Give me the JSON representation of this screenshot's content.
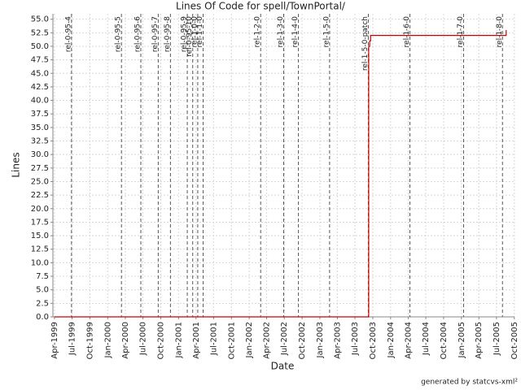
{
  "chart_data": {
    "type": "line",
    "title": "Lines Of Code for spell/TownPortal/",
    "x_label": "Date",
    "y_label": "Lines",
    "credit": "generated by statcvs-xml²",
    "color": "#cc0000",
    "grid": true,
    "x": [
      "1999-04-01",
      "2003-09-10",
      "2003-09-10",
      "2003-09-15",
      "2003-09-15",
      "2003-09-20",
      "2003-09-20",
      "2005-08-20",
      "2005-08-20"
    ],
    "values": [
      0,
      0,
      50,
      50,
      51,
      51,
      52,
      52,
      53
    ],
    "xlim": [
      "1999-03-24",
      "2005-10-02"
    ],
    "xticks": [
      {
        "value": "1999-04-01",
        "label": "Apr-1999"
      },
      {
        "value": "1999-07-01",
        "label": "Jul-1999"
      },
      {
        "value": "1999-10-01",
        "label": "Oct-1999"
      },
      {
        "value": "2000-01-01",
        "label": "Jan-2000"
      },
      {
        "value": "2000-04-01",
        "label": "Apr-2000"
      },
      {
        "value": "2000-07-01",
        "label": "Jul-2000"
      },
      {
        "value": "2000-10-01",
        "label": "Oct-2000"
      },
      {
        "value": "2001-01-01",
        "label": "Jan-2001"
      },
      {
        "value": "2001-04-01",
        "label": "Apr-2001"
      },
      {
        "value": "2001-07-01",
        "label": "Jul-2001"
      },
      {
        "value": "2001-10-01",
        "label": "Oct-2001"
      },
      {
        "value": "2002-01-01",
        "label": "Jan-2002"
      },
      {
        "value": "2002-04-01",
        "label": "Apr-2002"
      },
      {
        "value": "2002-07-01",
        "label": "Jul-2002"
      },
      {
        "value": "2002-10-01",
        "label": "Oct-2002"
      },
      {
        "value": "2003-01-01",
        "label": "Jan-2003"
      },
      {
        "value": "2003-04-01",
        "label": "Apr-2003"
      },
      {
        "value": "2003-07-01",
        "label": "Jul-2003"
      },
      {
        "value": "2003-10-01",
        "label": "Oct-2003"
      },
      {
        "value": "2004-01-01",
        "label": "Jan-2004"
      },
      {
        "value": "2004-04-01",
        "label": "Apr-2004"
      },
      {
        "value": "2004-07-01",
        "label": "Jul-2004"
      },
      {
        "value": "2004-10-01",
        "label": "Oct-2004"
      },
      {
        "value": "2005-01-01",
        "label": "Jan-2005"
      },
      {
        "value": "2005-04-01",
        "label": "Apr-2005"
      },
      {
        "value": "2005-07-01",
        "label": "Jul-2005"
      },
      {
        "value": "2005-10-01",
        "label": "Oct-2005"
      }
    ],
    "ylim": [
      0,
      56
    ],
    "yticks": [
      {
        "value": 0,
        "label": "0.0"
      },
      {
        "value": 2.5,
        "label": "2.5"
      },
      {
        "value": 5,
        "label": "5.0"
      },
      {
        "value": 7.5,
        "label": "7.5"
      },
      {
        "value": 10,
        "label": "10.0"
      },
      {
        "value": 12.5,
        "label": "12.5"
      },
      {
        "value": 15,
        "label": "15.0"
      },
      {
        "value": 17.5,
        "label": "17.5"
      },
      {
        "value": 20,
        "label": "20.0"
      },
      {
        "value": 22.5,
        "label": "22.5"
      },
      {
        "value": 25,
        "label": "25.0"
      },
      {
        "value": 27.5,
        "label": "27.5"
      },
      {
        "value": 30,
        "label": "30.0"
      },
      {
        "value": 32.5,
        "label": "32.5"
      },
      {
        "value": 35,
        "label": "35.0"
      },
      {
        "value": 37.5,
        "label": "37.5"
      },
      {
        "value": 40,
        "label": "40.0"
      },
      {
        "value": 42.5,
        "label": "42.5"
      },
      {
        "value": 45,
        "label": "45.0"
      },
      {
        "value": 47.5,
        "label": "47.5"
      },
      {
        "value": 50,
        "label": "50.0"
      },
      {
        "value": 52.5,
        "label": "52.5"
      },
      {
        "value": 55,
        "label": "55.0"
      }
    ],
    "markers": [
      {
        "label": "rel-0-95-4",
        "x": "1999-06-28"
      },
      {
        "label": "rel-0-95-5",
        "x": "2000-03-12"
      },
      {
        "label": "rel-0-95-6",
        "x": "2000-06-20"
      },
      {
        "label": "rel-0-95-7",
        "x": "2000-09-18"
      },
      {
        "label": "rel-0-95-8",
        "x": "2000-11-20"
      },
      {
        "label": "rel-0-95-9",
        "x": "2001-02-15"
      },
      {
        "label": "rel-0-95-10",
        "x": "2001-03-15"
      },
      {
        "label": "rel-1-0-0",
        "x": "2001-04-10"
      },
      {
        "label": "rel-1-1-0",
        "x": "2001-05-08"
      },
      {
        "label": "rel-1-2-0",
        "x": "2002-03-01"
      },
      {
        "label": "rel-1-3-0",
        "x": "2002-06-28"
      },
      {
        "label": "rel-1-4-0",
        "x": "2002-09-12"
      },
      {
        "label": "rel-1-5-0",
        "x": "2003-02-20"
      },
      {
        "label": "rel-1-5-0-patch",
        "x": "2003-09-08"
      },
      {
        "label": "rel-1-6-0",
        "x": "2004-04-10"
      },
      {
        "label": "rel-1-7-0",
        "x": "2005-01-12"
      },
      {
        "label": "rel-1-8-0",
        "x": "2005-08-01"
      }
    ]
  }
}
